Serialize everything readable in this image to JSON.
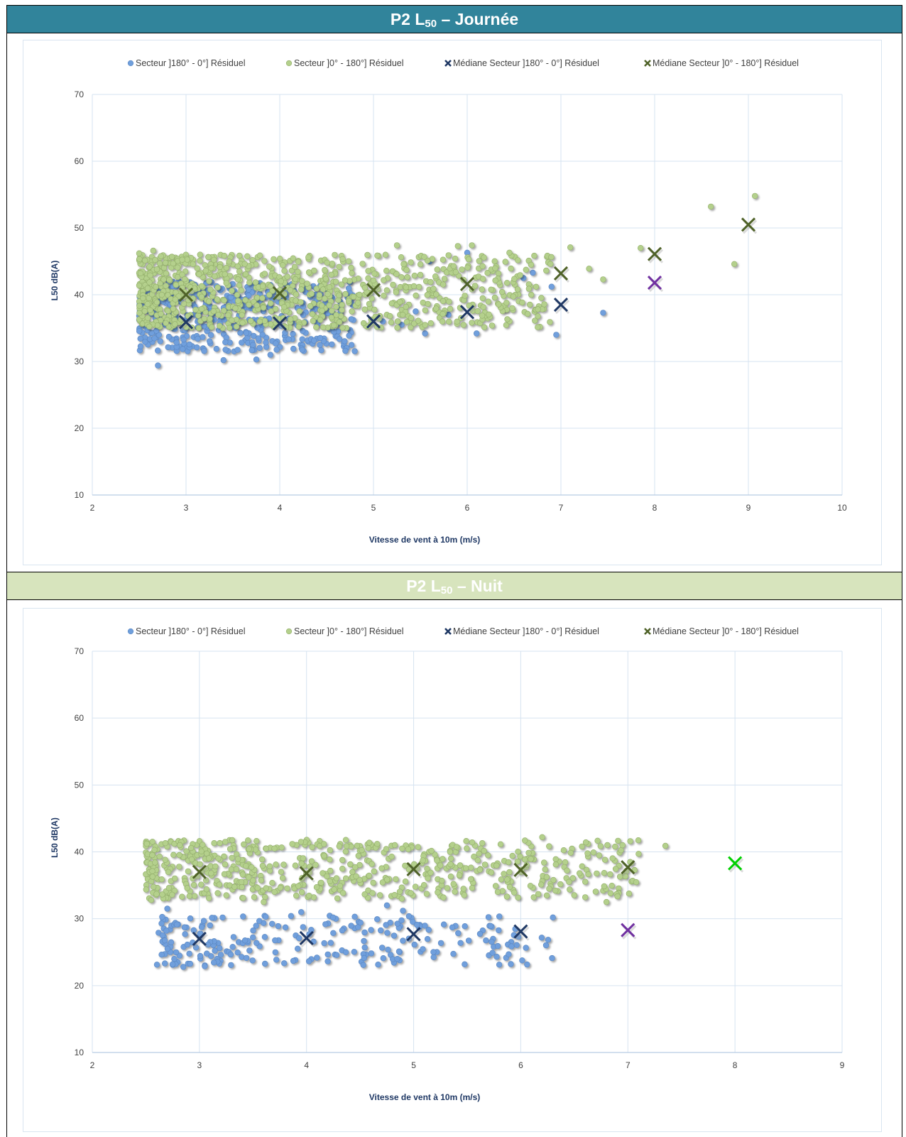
{
  "sections": [
    {
      "title_main": "P2 L",
      "title_sub": "50",
      "title_rest": " – Journée",
      "header_color": "#31849b"
    },
    {
      "title_main": "P2 L",
      "title_sub": "50",
      "title_rest": " – Nuit",
      "header_color": "#d7e4bd"
    }
  ],
  "colors": {
    "blue_points": "#6f9fdc",
    "green_points": "#b4d08c",
    "blue_median": "#1f3864",
    "green_median": "#4f6228",
    "purple_marker": "#7030a0",
    "bright_green_marker": "#00d000",
    "grid": "#d6e3f0"
  },
  "chart_data": [
    {
      "type": "scatter",
      "xlabel": "Vitesse de vent à 10m (m/s)",
      "ylabel": "L50 dB(A)",
      "xlim": [
        2,
        10
      ],
      "ylim": [
        10,
        70
      ],
      "xticks": [
        2,
        3,
        4,
        5,
        6,
        7,
        8,
        9,
        10
      ],
      "yticks": [
        10,
        20,
        30,
        40,
        50,
        60,
        70
      ],
      "grid": true,
      "legend_position": "top",
      "legend": [
        "Secteur ]180° - 0°] Résiduel",
        "Secteur ]0° - 180°] Résiduel",
        "Médiane Secteur ]180° - 0°] Résiduel",
        "Médiane Secteur ]0° - 180°] Résiduel"
      ],
      "series": [
        {
          "name": "Secteur ]180° - 0°] Résiduel",
          "kind": "scatter-blue",
          "cloud": {
            "x_min": 2.5,
            "x_max": 4.8,
            "y_min": 31.5,
            "y_max": 42,
            "count": 420
          },
          "points": [
            [
              2.7,
              29.4
            ],
            [
              3.4,
              30.2
            ],
            [
              3.75,
              30.3
            ],
            [
              3.9,
              31.0
            ],
            [
              4.7,
              31.6
            ],
            [
              5.1,
              36.0
            ],
            [
              5.3,
              35.5
            ],
            [
              5.45,
              37.5
            ],
            [
              5.55,
              34.2
            ],
            [
              5.6,
              45.0
            ],
            [
              5.8,
              37.0
            ],
            [
              6.0,
              46.3
            ],
            [
              6.1,
              34.2
            ],
            [
              6.2,
              37.0
            ],
            [
              6.4,
              37.8
            ],
            [
              6.6,
              42.5
            ],
            [
              6.7,
              43.3
            ],
            [
              6.9,
              41.2
            ],
            [
              6.95,
              34.0
            ],
            [
              7.45,
              37.3
            ]
          ]
        },
        {
          "name": "Secteur ]0° - 180°] Résiduel",
          "kind": "scatter-green",
          "cloud": {
            "x_min": 2.5,
            "x_max": 6.9,
            "y_min": 35,
            "y_max": 46,
            "count": 900
          },
          "points": [
            [
              2.5,
              46.2
            ],
            [
              2.65,
              46.6
            ],
            [
              3.15,
              46.0
            ],
            [
              5.25,
              47.4
            ],
            [
              5.9,
              47.3
            ],
            [
              6.05,
              47.4
            ],
            [
              6.45,
              46.3
            ],
            [
              7.1,
              47.1
            ],
            [
              7.3,
              43.9
            ],
            [
              7.45,
              42.3
            ],
            [
              7.85,
              47.0
            ],
            [
              8.6,
              53.2
            ],
            [
              8.85,
              44.6
            ],
            [
              9.07,
              54.8
            ]
          ]
        },
        {
          "name": "Médiane Secteur ]180° - 0°] Résiduel",
          "kind": "median-blue",
          "points": [
            [
              3,
              35.9
            ],
            [
              4,
              35.7
            ],
            [
              5,
              36.0
            ],
            [
              6,
              37.4
            ],
            [
              7,
              38.5
            ]
          ]
        },
        {
          "name": "Médiane Secteur ]0° - 180°] Résiduel",
          "kind": "median-green",
          "points": [
            [
              3,
              40.0
            ],
            [
              4,
              40.2
            ],
            [
              5,
              40.7
            ],
            [
              6,
              41.6
            ],
            [
              7,
              43.2
            ],
            [
              8,
              46.1
            ],
            [
              9,
              50.5
            ]
          ]
        },
        {
          "kind": "median-purple",
          "points": [
            [
              8,
              41.8
            ]
          ]
        }
      ]
    },
    {
      "type": "scatter",
      "xlabel": "Vitesse de vent à 10m (m/s)",
      "ylabel": "L50 dB(A)",
      "xlim": [
        2,
        9
      ],
      "ylim": [
        10,
        70
      ],
      "xticks": [
        2,
        3,
        4,
        5,
        6,
        7,
        8,
        9
      ],
      "yticks": [
        10,
        20,
        30,
        40,
        50,
        60,
        70
      ],
      "grid": true,
      "legend_position": "top",
      "legend": [
        "Secteur ]180° - 0°] Résiduel",
        "Secteur ]0° - 180°] Résiduel",
        "Médiane Secteur ]180° - 0°] Résiduel",
        "Médiane Secteur ]0° - 180°] Résiduel"
      ],
      "series": [
        {
          "name": "Secteur ]180° - 0°] Résiduel",
          "kind": "scatter-blue",
          "cloud": {
            "x_min": 2.6,
            "x_max": 6.3,
            "y_min": 23,
            "y_max": 30.5,
            "count": 240
          },
          "points": [
            [
              2.75,
              23.2
            ],
            [
              2.85,
              22.8
            ],
            [
              3.05,
              22.9
            ],
            [
              2.7,
              31.5
            ],
            [
              3.95,
              31.0
            ],
            [
              4.45,
              30.3
            ],
            [
              4.75,
              32.0
            ],
            [
              4.9,
              31.2
            ],
            [
              6.3,
              30.2
            ]
          ]
        },
        {
          "name": "Secteur ]0° - 180°] Résiduel",
          "kind": "scatter-green",
          "cloud": {
            "x_min": 2.5,
            "x_max": 7.1,
            "y_min": 33,
            "y_max": 41.8,
            "count": 600
          },
          "points": [
            [
              2.55,
              32.8
            ],
            [
              3.6,
              32.5
            ],
            [
              6.2,
              42.2
            ],
            [
              6.95,
              41.0
            ],
            [
              7.35,
              40.9
            ],
            [
              7.1,
              39.7
            ],
            [
              6.8,
              32.5
            ]
          ]
        },
        {
          "name": "Médiane Secteur ]180° - 0°] Résiduel",
          "kind": "median-blue",
          "points": [
            [
              3,
              27.0
            ],
            [
              4,
              27.1
            ],
            [
              5,
              27.7
            ],
            [
              6,
              28.1
            ]
          ]
        },
        {
          "name": "Médiane Secteur ]0° - 180°] Résiduel",
          "kind": "median-green",
          "points": [
            [
              3,
              37.0
            ],
            [
              4,
              36.8
            ],
            [
              5,
              37.4
            ],
            [
              6,
              37.3
            ],
            [
              7,
              37.7
            ]
          ]
        },
        {
          "kind": "median-purple",
          "points": [
            [
              7,
              28.3
            ]
          ]
        },
        {
          "kind": "median-brightgreen",
          "points": [
            [
              8,
              38.3
            ]
          ]
        }
      ]
    }
  ]
}
